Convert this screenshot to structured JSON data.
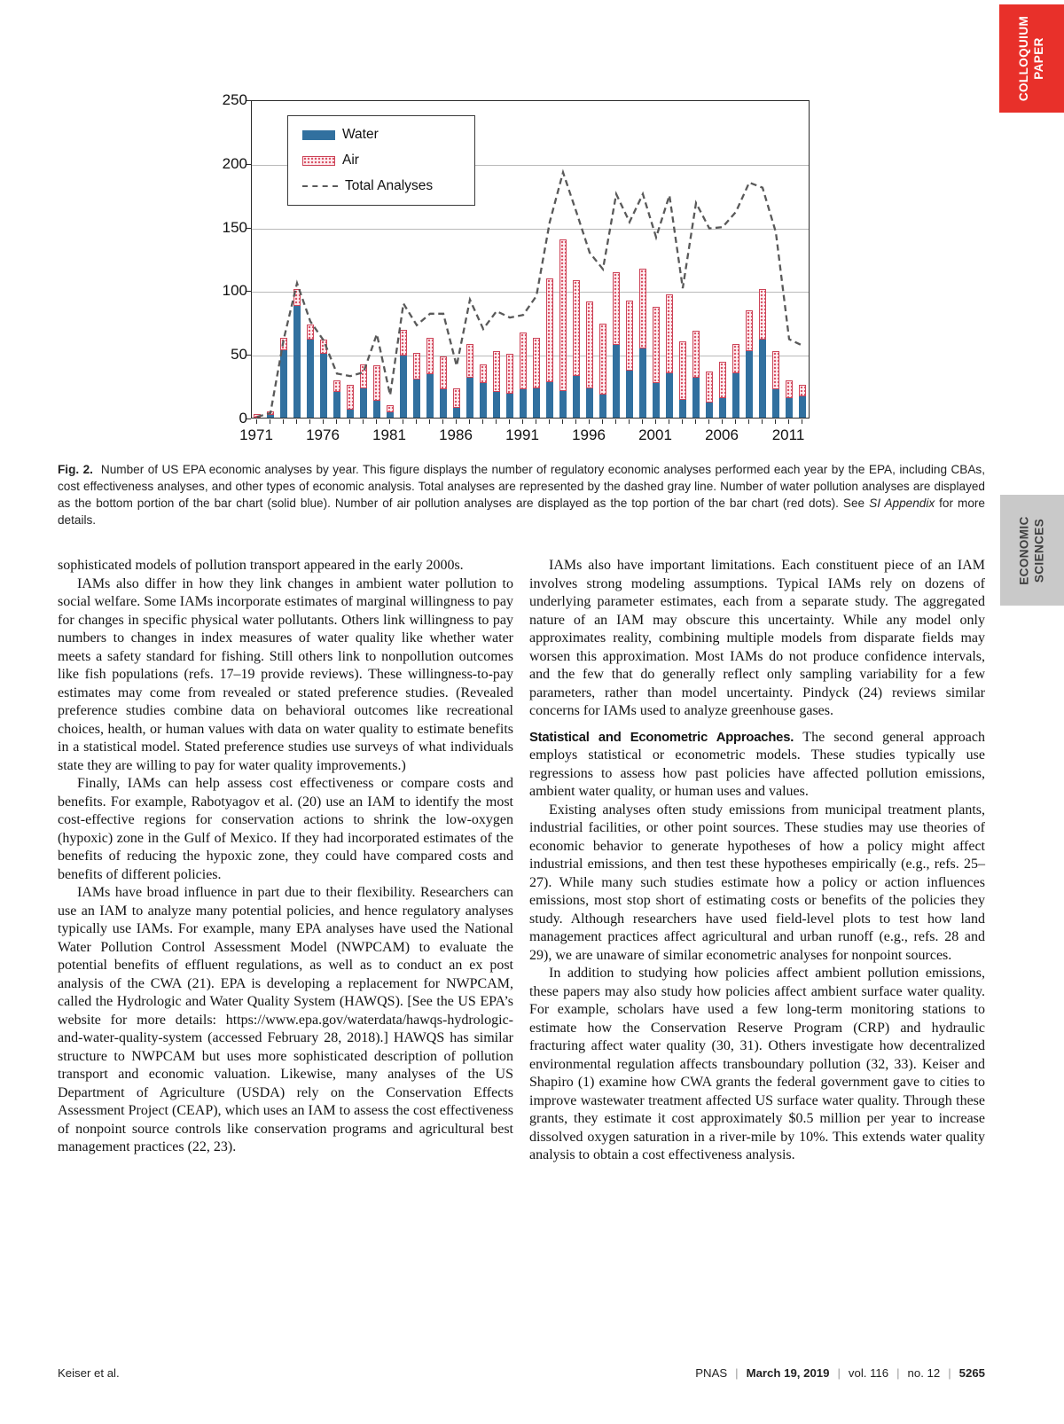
{
  "side_tabs": {
    "colloquium": {
      "line1": "COLLOQUIUM",
      "line2": "PAPER",
      "bg": "#E8302A"
    },
    "economic": {
      "line1": "ECONOMIC",
      "line2": "SCIENCES",
      "bg": "#C9C9C9"
    }
  },
  "chart_data": {
    "type": "bar",
    "subtype": "stacked-bars-with-total-line",
    "title": "",
    "xlabel": "",
    "ylabel": "",
    "ylim": [
      0,
      250
    ],
    "yticks": [
      0,
      50,
      100,
      150,
      200,
      250
    ],
    "xticks_labeled": [
      1971,
      1976,
      1981,
      1986,
      1991,
      1996,
      2001,
      2006,
      2011
    ],
    "grid": "horizontal",
    "legend_position": "upper-left-inside",
    "legend": [
      "Water",
      "Air",
      "Total Analyses"
    ],
    "years": [
      1971,
      1972,
      1973,
      1974,
      1975,
      1976,
      1977,
      1978,
      1979,
      1980,
      1981,
      1982,
      1983,
      1984,
      1985,
      1986,
      1987,
      1988,
      1989,
      1990,
      1991,
      1992,
      1993,
      1994,
      1995,
      1996,
      1997,
      1998,
      1999,
      2000,
      2001,
      2002,
      2003,
      2004,
      2005,
      2006,
      2007,
      2008,
      2009,
      2010,
      2011,
      2012
    ],
    "series": [
      {
        "name": "Water",
        "type": "bar-bottom",
        "values": [
          0,
          2,
          53,
          88,
          61,
          50,
          20,
          6,
          23,
          13,
          4,
          49,
          30,
          34,
          22,
          8,
          31,
          27,
          20,
          19,
          22,
          23,
          28,
          21,
          33,
          23,
          18,
          57,
          37,
          54,
          27,
          35,
          14,
          31,
          12,
          15,
          35,
          52,
          61,
          22,
          15,
          17
        ]
      },
      {
        "name": "Air",
        "type": "bar-top",
        "values": [
          3,
          3,
          10,
          13,
          12,
          11,
          9,
          20,
          19,
          28,
          6,
          20,
          21,
          29,
          26,
          15,
          27,
          15,
          32,
          31,
          45,
          40,
          81,
          119,
          75,
          68,
          56,
          57,
          55,
          63,
          60,
          62,
          46,
          37,
          24,
          29,
          23,
          32,
          40,
          30,
          14,
          9
        ]
      },
      {
        "name": "Total Analyses",
        "type": "dashed-line",
        "values": [
          2,
          5,
          63,
          107,
          77,
          62,
          36,
          34,
          37,
          67,
          19,
          91,
          74,
          83,
          83,
          42,
          94,
          71,
          85,
          80,
          82,
          97,
          155,
          194,
          163,
          131,
          118,
          177,
          155,
          177,
          143,
          176,
          103,
          170,
          150,
          151,
          163,
          186,
          182,
          147,
          63,
          58
        ]
      }
    ],
    "colors": {
      "water": "#31709F",
      "air_fill": "#FDEDF0",
      "air_dot": "#D94F63",
      "air_border": "#CC4458",
      "total_line": "#595959",
      "grid": "#B9B9B9"
    }
  },
  "figure_caption": {
    "label": "Fig. 2.",
    "text1": "Number of US EPA economic analyses by year. This figure displays the number of regulatory economic analyses performed each year by the EPA, including CBAs, cost effectiveness analyses, and other types of economic analysis. Total analyses are represented by the dashed gray line. Number of water pollution analyses are displayed as the bottom portion of the bar chart (solid blue). Number of air pollution analyses are displayed as the top portion of the bar chart (red dots). See",
    "italic": "SI Appendix",
    "text2": "for more details."
  },
  "article": {
    "left_column": [
      {
        "indent": false,
        "text": "sophisticated models of pollution transport appeared in the early 2000s."
      },
      {
        "indent": true,
        "text": "IAMs also differ in how they link changes in ambient water pollution to social welfare. Some IAMs incorporate estimates of marginal willingness to pay for changes in specific physical water pollutants. Others link willingness to pay numbers to changes in index measures of water quality like whether water meets a safety standard for fishing. Still others link to nonpollution outcomes like fish populations (refs. 17–19 provide reviews). These willingness-to-pay estimates may come from revealed or stated preference studies. (Revealed preference studies combine data on behavioral outcomes like recreational choices, health, or human values with data on water quality to estimate benefits in a statistical model. Stated preference studies use surveys of what individuals state they are willing to pay for water quality improvements.)"
      },
      {
        "indent": true,
        "text": "Finally, IAMs can help assess cost effectiveness or compare costs and benefits. For example, Rabotyagov et al. (20) use an IAM to identify the most cost-effective regions for conservation actions to shrink the low-oxygen (hypoxic) zone in the Gulf of Mexico. If they had incorporated estimates of the benefits of reducing the hypoxic zone, they could have compared costs and benefits of different policies."
      },
      {
        "indent": true,
        "text": "IAMs have broad influence in part due to their flexibility. Researchers can use an IAM to analyze many potential policies, and hence regulatory analyses typically use IAMs. For example, many EPA analyses have used the National Water Pollution Control Assessment Model (NWPCAM) to evaluate the potential benefits of effluent regulations, as well as to conduct an ex post analysis of the CWA (21). EPA is developing a replacement for NWPCAM, called the Hydrologic and Water Quality System (HAWQS). [See the US EPA’s website for more details: https://www.epa.gov/waterdata/hawqs-hydrologic-and-water-quality-system (accessed February 28, 2018).] HAWQS has similar structure to NWPCAM but uses more sophisticated description of pollution transport and economic valuation. Likewise, many analyses of the US Department of Agriculture (USDA) rely on the Conservation Effects Assessment Project (CEAP), which uses an IAM to assess the cost effectiveness of nonpoint source controls like conservation programs and agricultural best management practices (22, 23)."
      }
    ],
    "right_column": [
      {
        "indent": true,
        "text": "IAMs also have important limitations. Each constituent piece of an IAM involves strong modeling assumptions. Typical IAMs rely on dozens of underlying parameter estimates, each from a separate study. The aggregated nature of an IAM may obscure this uncertainty. While any model only approximates reality, combining multiple models from disparate fields may worsen this approximation. Most IAMs do not produce confidence intervals, and the few that do generally reflect only sampling variability for a few parameters, rather than model uncertainty. Pindyck (24) reviews similar concerns for IAMs used to analyze greenhouse gases."
      },
      {
        "indent": false,
        "spaced": true,
        "heading": "Statistical and Econometric Approaches.",
        "text": "The second general approach employs statistical or econometric models. These studies typically use regressions to assess how past policies have affected pollution emissions, ambient water quality, or human uses and values."
      },
      {
        "indent": true,
        "text": "Existing analyses often study emissions from municipal treatment plants, industrial facilities, or other point sources. These studies may use theories of economic behavior to generate hypotheses of how a policy might affect industrial emissions, and then test these hypotheses empirically (e.g., refs. 25–27). While many such studies estimate how a policy or action influences emissions, most stop short of estimating costs or benefits of the policies they study. Although researchers have used field-level plots to test how land management practices affect agricultural and urban runoff (e.g., refs. 28 and 29), we are unaware of similar econometric analyses for nonpoint sources."
      },
      {
        "indent": true,
        "text": "In addition to studying how policies affect ambient pollution emissions, these papers may also study how policies affect ambient surface water quality. For example, scholars have used a few long-term monitoring stations to estimate how the Conservation Reserve Program (CRP) and hydraulic fracturing affect water quality (30, 31). Others investigate how decentralized environmental regulation affects transboundary pollution (32, 33). Keiser and Shapiro (1) examine how CWA grants the federal government gave to cities to improve wastewater treatment affected US surface water quality. Through these grants, they estimate it cost approximately $0.5 million per year to increase dissolved oxygen saturation in a river-mile by 10%. This extends water quality analysis to obtain a cost effectiveness analysis."
      }
    ]
  },
  "footer": {
    "authors": "Keiser et al.",
    "journal": "PNAS",
    "date": "March 19, 2019",
    "volume": "vol. 116",
    "issue": "no. 12",
    "page": "5265"
  }
}
